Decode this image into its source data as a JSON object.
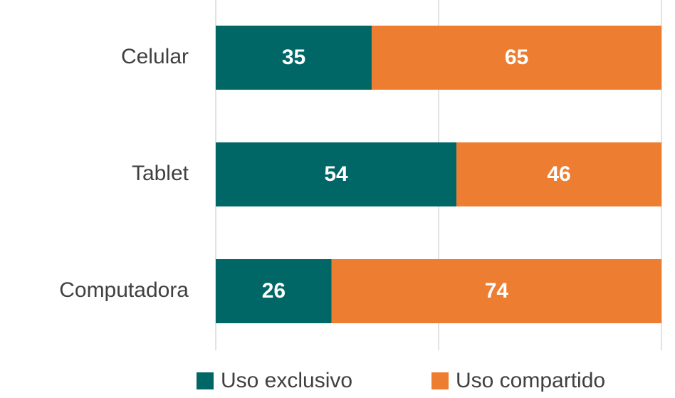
{
  "chart_data": {
    "type": "stacked_barh",
    "categories": [
      "Celular",
      "Tablet",
      "Computadora"
    ],
    "series": [
      {
        "name": "Uso exclusivo",
        "color": "#006666",
        "values": [
          35,
          54,
          26
        ]
      },
      {
        "name": "Uso compartido",
        "color": "#ED7D31",
        "values": [
          65,
          46,
          74
        ]
      }
    ],
    "xlim": [
      0,
      100
    ],
    "xticks": [
      0,
      50,
      100
    ],
    "grid": true,
    "legend": "bottom"
  }
}
